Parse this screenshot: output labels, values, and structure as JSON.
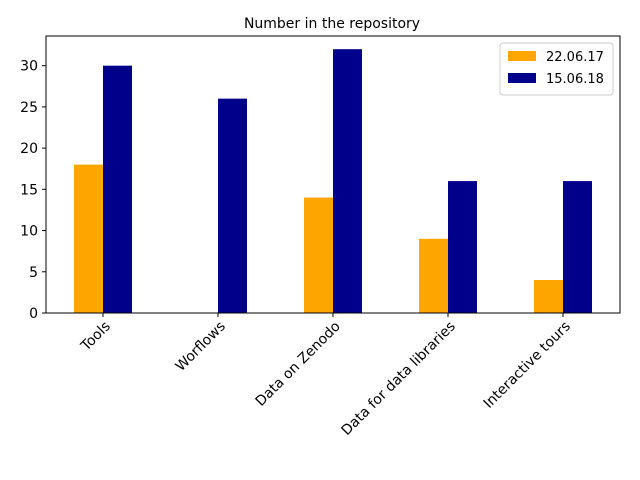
{
  "chart_data": {
    "type": "bar",
    "title": "Number in the repository",
    "xlabel": "",
    "ylabel": "",
    "categories": [
      "Tools",
      "Worflows",
      "Data on Zenodo",
      "Data for data libraries",
      "Interactive tours"
    ],
    "series": [
      {
        "name": "22.06.17",
        "color": "#FFA500",
        "values": [
          18,
          0,
          14,
          9,
          4
        ]
      },
      {
        "name": "15.06.18",
        "color": "#00008B",
        "values": [
          30,
          26,
          32,
          16,
          16
        ]
      }
    ],
    "ylim": [
      0,
      33.6
    ],
    "yticks": [
      0,
      5,
      10,
      15,
      20,
      25,
      30
    ],
    "grid": false,
    "legend_position": "top-right"
  }
}
